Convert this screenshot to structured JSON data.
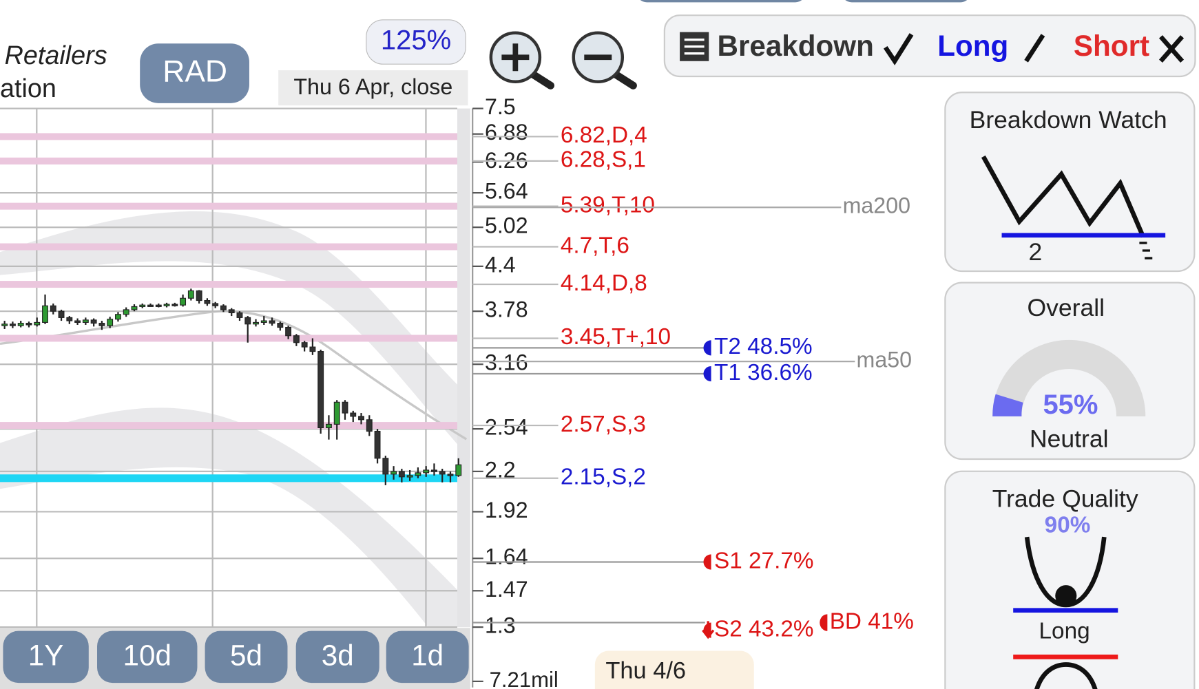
{
  "header": {
    "sector": "Retailers",
    "subtitle": "ation",
    "symbol": "RAD",
    "zoom": "125%",
    "date": "Thu 6 Apr, close"
  },
  "legend": {
    "breakdown": "Breakdown",
    "long": "Long",
    "short": "Short"
  },
  "chart": {
    "type": "candlestick",
    "yscale": "log",
    "ylim": [
      1.3,
      7.5
    ],
    "yticks": [
      7.5,
      6.88,
      6.26,
      5.64,
      5.02,
      4.4,
      3.78,
      3.16,
      2.54,
      2.2,
      1.92,
      1.64,
      1.47,
      1.3
    ],
    "up_color": "#2e9a32",
    "down_color": "#333333",
    "open": [
      3.6,
      3.62,
      3.6,
      3.63,
      3.61,
      3.64,
      3.85,
      3.78,
      3.7,
      3.66,
      3.64,
      3.67,
      3.63,
      3.6,
      3.68,
      3.74,
      3.8,
      3.84,
      3.86,
      3.86,
      3.85,
      3.87,
      3.86,
      3.95,
      4.05,
      3.92,
      3.88,
      3.85,
      3.8,
      3.76,
      3.7,
      3.62,
      3.64,
      3.66,
      3.63,
      3.58,
      3.48,
      3.4,
      3.35,
      3.3,
      2.55,
      2.58,
      2.78,
      2.68,
      2.65,
      2.62,
      2.52,
      2.3,
      2.18,
      2.2,
      2.16,
      2.17,
      2.19,
      2.21,
      2.2,
      2.18,
      2.17
    ],
    "high": [
      3.66,
      3.65,
      3.66,
      3.65,
      3.7,
      4.0,
      3.88,
      3.8,
      3.72,
      3.69,
      3.7,
      3.69,
      3.66,
      3.71,
      3.77,
      3.83,
      3.87,
      3.88,
      3.88,
      3.88,
      3.89,
      3.89,
      4.0,
      4.08,
      4.06,
      3.95,
      3.9,
      3.87,
      3.82,
      3.78,
      3.72,
      3.68,
      3.72,
      3.7,
      3.65,
      3.6,
      3.5,
      3.42,
      3.45,
      3.32,
      2.66,
      2.8,
      2.8,
      2.7,
      2.68,
      2.66,
      2.54,
      2.32,
      2.24,
      2.22,
      2.21,
      2.23,
      2.24,
      2.26,
      2.22,
      2.2,
      2.3
    ],
    "low": [
      3.56,
      3.57,
      3.58,
      3.58,
      3.59,
      3.62,
      3.74,
      3.66,
      3.62,
      3.61,
      3.61,
      3.59,
      3.55,
      3.57,
      3.65,
      3.71,
      3.78,
      3.82,
      3.84,
      3.83,
      3.83,
      3.84,
      3.84,
      3.92,
      3.88,
      3.85,
      3.82,
      3.77,
      3.72,
      3.66,
      3.4,
      3.59,
      3.61,
      3.6,
      3.54,
      3.44,
      3.36,
      3.3,
      3.26,
      2.5,
      2.45,
      2.45,
      2.62,
      2.6,
      2.58,
      2.48,
      2.26,
      2.1,
      2.14,
      2.12,
      2.13,
      2.15,
      2.16,
      2.17,
      2.12,
      2.12,
      2.16
    ],
    "close": [
      3.62,
      3.6,
      3.63,
      3.61,
      3.64,
      3.85,
      3.78,
      3.7,
      3.66,
      3.64,
      3.67,
      3.63,
      3.6,
      3.68,
      3.74,
      3.8,
      3.84,
      3.86,
      3.86,
      3.85,
      3.87,
      3.86,
      3.95,
      4.05,
      3.92,
      3.88,
      3.85,
      3.8,
      3.76,
      3.7,
      3.62,
      3.64,
      3.66,
      3.63,
      3.58,
      3.48,
      3.4,
      3.35,
      3.3,
      2.55,
      2.58,
      2.78,
      2.68,
      2.65,
      2.62,
      2.52,
      2.3,
      2.18,
      2.2,
      2.16,
      2.17,
      2.19,
      2.21,
      2.2,
      2.18,
      2.17,
      2.25
    ],
    "levels": [
      {
        "label": "6.82,D,4",
        "value": 6.82,
        "color": "#dd1515",
        "band_color": "#ebc6dd"
      },
      {
        "label": "6.28,S,1",
        "value": 6.28,
        "color": "#dd1515",
        "band_color": "#ebc6dd"
      },
      {
        "label": "5.39,T,10",
        "value": 5.39,
        "color": "#dd1515",
        "band_color": "#ebc6dd"
      },
      {
        "label": "4.7,T,6",
        "value": 4.7,
        "color": "#dd1515",
        "band_color": "#ebc6dd"
      },
      {
        "label": "4.14,D,8",
        "value": 4.14,
        "color": "#dd1515",
        "band_color": "#ebc6dd"
      },
      {
        "label": "3.45,T+,10",
        "value": 3.45,
        "color": "#dd1515",
        "band_color": "#ebc6dd"
      },
      {
        "label": "2.57,S,3",
        "value": 2.57,
        "color": "#dd1515",
        "band_color": "#ebc6dd"
      },
      {
        "label": "2.15,S,2",
        "value": 2.15,
        "color": "#1a1ad0",
        "band_color": "#1ed6f4"
      }
    ],
    "moving_averages": [
      {
        "label": "ma200",
        "value": 5.37
      },
      {
        "label": "ma50",
        "value": 3.19
      }
    ],
    "markers": [
      {
        "label": "T2 48.5%",
        "value": 3.34,
        "color": "#1a1ad0"
      },
      {
        "label": "T1 36.6%",
        "value": 3.06,
        "color": "#1a1ad0"
      },
      {
        "label": "S1 27.7%",
        "value": 1.62,
        "color": "#dd1515"
      },
      {
        "label": "S2 43.2%",
        "value": 1.32,
        "color": "#dd1515"
      }
    ],
    "breakdown_marker": {
      "label": "BD 41%",
      "color": "#dd1515"
    },
    "volume_label": "7.21mil",
    "periods": [
      "1Y",
      "10d",
      "5d",
      "3d",
      "1d"
    ],
    "tooltip": "Thu 4/6"
  },
  "cards": [
    {
      "title": "Breakdown Watch",
      "value": "2"
    },
    {
      "title": "Overall",
      "value": "55%",
      "status": "Neutral"
    },
    {
      "title": "Trade Quality",
      "value": "90%",
      "status": "Long"
    }
  ]
}
